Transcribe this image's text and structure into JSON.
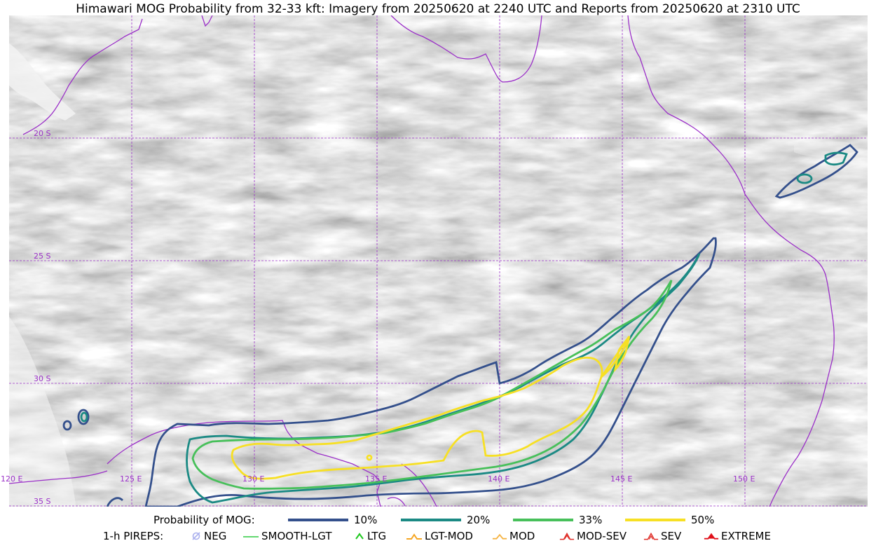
{
  "title": "Himawari MOG Probability from 32-33 kft: Imagery from 20250620 at 2240 UTC and Reports from 20250620 at 2310 UTC",
  "map": {
    "lat_labels": [
      "20 S",
      "25 S",
      "30 S",
      "35 S"
    ],
    "lon_labels": [
      "120 E",
      "125 E",
      "130 E",
      "135 E",
      "140 E",
      "145 E",
      "150 E"
    ],
    "colors": {
      "border": "#9b30c8",
      "grid": "#9b30c8",
      "p10": "#34508c",
      "p20": "#1b8a84",
      "p33": "#47c05a",
      "p50": "#f7e024"
    }
  },
  "legend": {
    "prob_title": "Probability of MOG:",
    "prob_items": [
      {
        "label": "10%",
        "color": "#34508c"
      },
      {
        "label": "20%",
        "color": "#1b8a84"
      },
      {
        "label": "33%",
        "color": "#47c05a"
      },
      {
        "label": "50%",
        "color": "#f7e024"
      }
    ],
    "pirep_title": "1-h PIREPS:",
    "pirep_items": [
      {
        "label": "NEG",
        "icon": "neg-icon",
        "color": "#aab0ee"
      },
      {
        "label": "SMOOTH-LGT",
        "icon": "smooth-lgt-icon",
        "color": "#2ecc40"
      },
      {
        "label": "LTG",
        "icon": "ltg-icon",
        "color": "#1ec81e"
      },
      {
        "label": "LGT-MOD",
        "icon": "lgt-mod-icon",
        "color": "#f5a623"
      },
      {
        "label": "MOD",
        "icon": "mod-icon",
        "color": "#f5b342"
      },
      {
        "label": "MOD-SEV",
        "icon": "mod-sev-icon",
        "color": "#e0302a"
      },
      {
        "label": "SEV",
        "icon": "sev-icon",
        "color": "#e0302a"
      },
      {
        "label": "EXTREME",
        "icon": "extreme-icon",
        "color": "#e0101a"
      }
    ]
  }
}
